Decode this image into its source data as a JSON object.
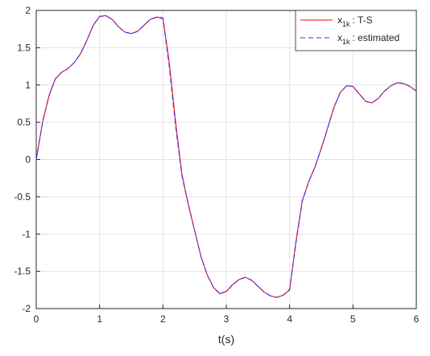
{
  "chart_data": {
    "type": "line",
    "xlabel": "t(s)",
    "x": [
      0,
      0.1,
      0.2,
      0.3,
      0.4,
      0.5,
      0.6,
      0.7,
      0.8,
      0.9,
      1,
      1.1,
      1.2,
      1.3,
      1.4,
      1.5,
      1.6,
      1.7,
      1.8,
      1.9,
      2,
      2.1,
      2.2,
      2.3,
      2.4,
      2.5,
      2.6,
      2.7,
      2.8,
      2.9,
      3,
      3.1,
      3.2,
      3.3,
      3.4,
      3.5,
      3.6,
      3.7,
      3.8,
      3.9,
      4,
      4.1,
      4.2,
      4.3,
      4.4,
      4.5,
      4.6,
      4.7,
      4.8,
      4.9,
      5,
      5.1,
      5.2,
      5.3,
      5.4,
      5.5,
      5.6,
      5.7,
      5.8,
      5.9,
      6
    ],
    "series": [
      {
        "name": {
          "base": "x",
          "sub": "1k",
          "text": ": T-S"
        },
        "color": "#ff0000",
        "dash": false,
        "values": [
          0,
          0.5,
          0.85,
          1.08,
          1.17,
          1.22,
          1.3,
          1.42,
          1.6,
          1.8,
          1.92,
          1.93,
          1.88,
          1.78,
          1.71,
          1.69,
          1.72,
          1.8,
          1.88,
          1.91,
          1.9,
          1.3,
          0.5,
          -0.2,
          -0.6,
          -0.95,
          -1.3,
          -1.55,
          -1.72,
          -1.8,
          -1.77,
          -1.68,
          -1.61,
          -1.58,
          -1.62,
          -1.7,
          -1.78,
          -1.83,
          -1.85,
          -1.82,
          -1.75,
          -1.1,
          -0.55,
          -0.3,
          -0.1,
          0.15,
          0.42,
          0.7,
          0.9,
          0.99,
          0.98,
          0.88,
          0.78,
          0.76,
          0.82,
          0.92,
          0.99,
          1.03,
          1.02,
          0.98,
          0.92
        ]
      },
      {
        "name": {
          "base": "x",
          "sub": "1k",
          "text": ": estimated"
        },
        "color": "#3333ff",
        "dash": true,
        "values": [
          0,
          0.5,
          0.85,
          1.08,
          1.17,
          1.22,
          1.3,
          1.42,
          1.6,
          1.8,
          1.92,
          1.93,
          1.88,
          1.78,
          1.71,
          1.69,
          1.72,
          1.8,
          1.88,
          1.91,
          1.89,
          1.25,
          0.45,
          -0.22,
          -0.6,
          -0.95,
          -1.3,
          -1.55,
          -1.72,
          -1.8,
          -1.77,
          -1.68,
          -1.61,
          -1.58,
          -1.62,
          -1.7,
          -1.78,
          -1.83,
          -1.85,
          -1.82,
          -1.74,
          -1.12,
          -0.56,
          -0.3,
          -0.1,
          0.15,
          0.42,
          0.7,
          0.9,
          0.99,
          0.98,
          0.88,
          0.78,
          0.76,
          0.82,
          0.92,
          0.99,
          1.03,
          1.02,
          0.98,
          0.92
        ]
      }
    ],
    "xlim": [
      0,
      6
    ],
    "xticks": [
      0,
      1,
      2,
      3,
      4,
      5,
      6
    ],
    "ylim": [
      -2,
      2
    ],
    "yticks": [
      -2,
      -1.5,
      -1,
      -0.5,
      0,
      0.5,
      1,
      1.5,
      2
    ],
    "grid": true,
    "legend": "top-right"
  }
}
